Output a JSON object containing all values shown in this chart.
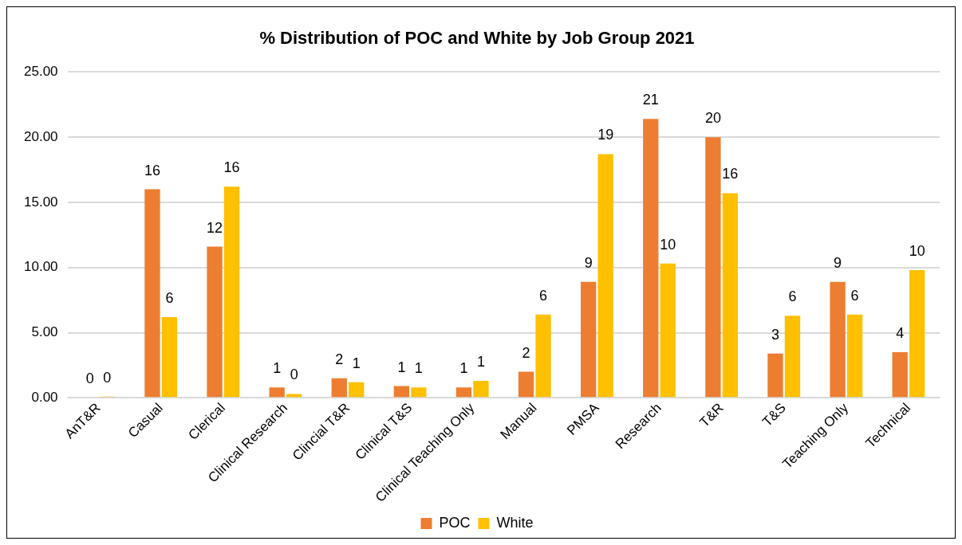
{
  "chart_data": {
    "type": "bar",
    "title": "% Distribution of POC and White by Job Group 2021",
    "categories": [
      "AnT&R",
      "Casual",
      "Clerical",
      "Clinical Research",
      "Clincial T&R",
      "Clinical T&S",
      "Clinical Teaching Only",
      "Manual",
      "PMSA",
      "Research",
      "T&R",
      "T&S",
      "Teaching Only",
      "Technical"
    ],
    "series": [
      {
        "name": "POC",
        "color": "#ed7d31",
        "values": [
          0,
          16.0,
          11.6,
          0.8,
          1.5,
          0.9,
          0.8,
          2.0,
          8.9,
          21.4,
          20.0,
          3.4,
          8.9,
          3.5
        ],
        "value_labels": [
          "0",
          "16",
          "12",
          "1",
          "2",
          "1",
          "1",
          "2",
          "9",
          "21",
          "20",
          "3",
          "9",
          "4"
        ]
      },
      {
        "name": "White",
        "color": "#ffc000",
        "values": [
          0.1,
          6.2,
          16.2,
          0.3,
          1.2,
          0.8,
          1.3,
          6.4,
          18.7,
          10.3,
          15.7,
          6.3,
          6.4,
          9.8
        ],
        "value_labels": [
          "0",
          "6",
          "16",
          "0",
          "1",
          "1",
          "1",
          "6",
          "19",
          "10",
          "16",
          "6",
          "6",
          "10"
        ]
      }
    ],
    "ylim": [
      0,
      25
    ],
    "yticks": [
      {
        "value": 0,
        "label": "0.00"
      },
      {
        "value": 5,
        "label": "5.00"
      },
      {
        "value": 10,
        "label": "10.00"
      },
      {
        "value": 15,
        "label": "15.00"
      },
      {
        "value": 20,
        "label": "20.00"
      },
      {
        "value": 25,
        "label": "25.00"
      }
    ],
    "grid": "y",
    "legend": "bottom"
  }
}
